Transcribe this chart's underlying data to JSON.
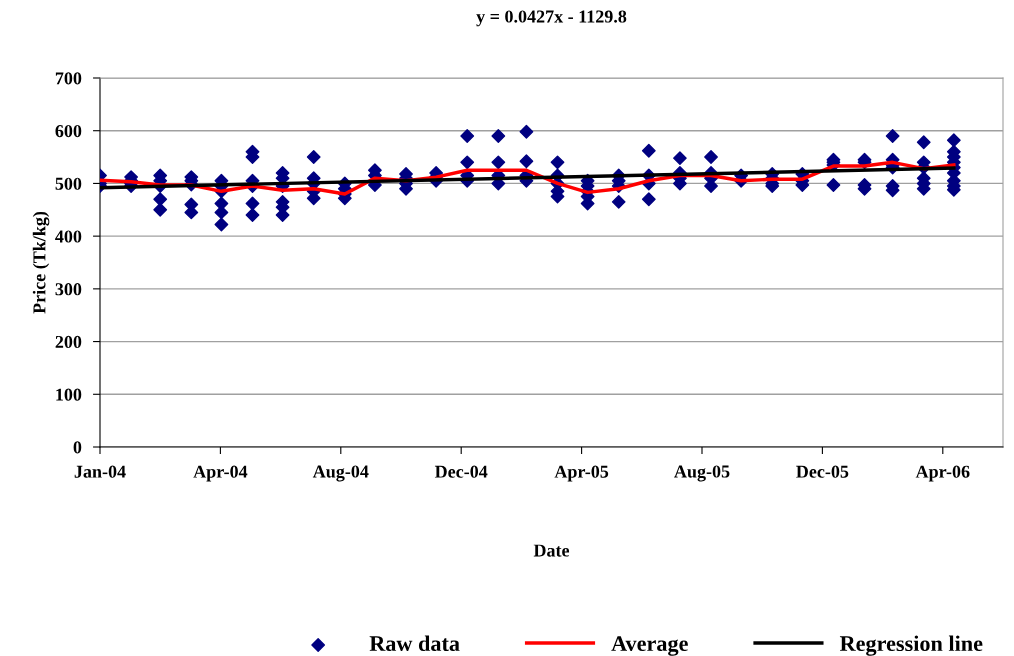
{
  "chart_data": {
    "type": "scatter",
    "title": "y = 0.0427x - 1129.8",
    "xlabel": "Date",
    "ylabel": "Price (Tk/kg)",
    "xlim": [
      "2004-01-01",
      "2006-06-19"
    ],
    "ylim": [
      0,
      700
    ],
    "yticks": [
      0,
      100,
      200,
      300,
      400,
      500,
      600,
      700
    ],
    "xticks": [
      {
        "value": "2004-01-01",
        "label": "Jan-04"
      },
      {
        "value": "2004-04-30",
        "label": "Apr-04"
      },
      {
        "value": "2004-08-28",
        "label": "Aug-04"
      },
      {
        "value": "2004-12-26",
        "label": "Dec-04"
      },
      {
        "value": "2005-04-25",
        "label": "Apr-05"
      },
      {
        "value": "2005-08-23",
        "label": "Aug-05"
      },
      {
        "value": "2005-12-21",
        "label": "Dec-05"
      },
      {
        "value": "2006-04-20",
        "label": "Apr-06"
      }
    ],
    "grid": "y",
    "legend": "bottom",
    "series": [
      {
        "name": "Raw data",
        "marker": "diamond",
        "color": "#000080",
        "x": [
          "2004-01",
          "2004-01",
          "2004-01",
          "2004-02",
          "2004-02",
          "2004-02",
          "2004-02",
          "2004-03",
          "2004-03",
          "2004-03",
          "2004-03",
          "2004-03",
          "2004-04",
          "2004-04",
          "2004-04",
          "2004-04",
          "2004-04",
          "2004-05",
          "2004-05",
          "2004-05",
          "2004-05",
          "2004-05",
          "2004-05",
          "2004-06",
          "2004-06",
          "2004-06",
          "2004-06",
          "2004-06",
          "2004-06",
          "2004-07",
          "2004-07",
          "2004-07",
          "2004-07",
          "2004-07",
          "2004-07",
          "2004-08",
          "2004-08",
          "2004-08",
          "2004-08",
          "2004-08",
          "2004-09",
          "2004-09",
          "2004-09",
          "2004-09",
          "2004-10",
          "2004-10",
          "2004-10",
          "2004-11",
          "2004-11",
          "2004-11",
          "2004-11",
          "2004-12",
          "2004-12",
          "2004-12",
          "2005-01",
          "2005-01",
          "2005-01",
          "2005-01",
          "2005-02",
          "2005-02",
          "2005-02",
          "2005-02",
          "2005-03",
          "2005-03",
          "2005-03",
          "2005-03",
          "2005-04",
          "2005-04",
          "2005-04",
          "2005-04",
          "2005-04",
          "2005-05",
          "2005-05",
          "2005-05",
          "2005-05",
          "2005-05",
          "2005-06",
          "2005-06",
          "2005-06",
          "2005-06",
          "2005-07",
          "2005-07",
          "2005-07",
          "2005-07",
          "2005-08",
          "2005-08",
          "2005-08",
          "2005-08",
          "2005-09",
          "2005-09",
          "2005-09",
          "2005-09",
          "2005-10",
          "2005-10",
          "2005-11",
          "2005-11",
          "2005-11",
          "2005-11",
          "2005-12",
          "2005-12",
          "2005-12",
          "2006-01",
          "2006-01",
          "2006-01",
          "2006-01",
          "2006-02",
          "2006-02",
          "2006-02",
          "2006-02",
          "2006-03",
          "2006-03",
          "2006-03",
          "2006-03",
          "2006-03",
          "2006-03",
          "2006-04",
          "2006-04",
          "2006-04",
          "2006-04",
          "2006-04",
          "2006-04",
          "2006-05",
          "2006-05",
          "2006-05",
          "2006-05",
          "2006-05",
          "2006-05",
          "2006-05",
          "2006-05",
          "2006-05"
        ],
        "values": [
          515,
          500,
          495,
          512,
          505,
          500,
          495,
          515,
          505,
          495,
          470,
          450,
          512,
          505,
          498,
          460,
          445,
          505,
          495,
          485,
          462,
          445,
          422,
          560,
          550,
          505,
          495,
          462,
          440,
          520,
          510,
          495,
          465,
          455,
          440,
          550,
          510,
          500,
          485,
          472,
          500,
          490,
          480,
          472,
          525,
          515,
          497,
          518,
          510,
          500,
          490,
          520,
          512,
          505,
          590,
          540,
          515,
          505,
          590,
          540,
          515,
          500,
          598,
          542,
          515,
          505,
          540,
          515,
          500,
          485,
          475,
          505,
          495,
          485,
          475,
          462,
          515,
          505,
          495,
          465,
          562,
          515,
          500,
          470,
          548,
          520,
          510,
          500,
          550,
          520,
          510,
          495,
          515,
          505,
          518,
          510,
          500,
          495,
          518,
          505,
          497,
          545,
          540,
          535,
          497,
          545,
          540,
          497,
          490,
          590,
          545,
          535,
          530,
          495,
          487,
          578,
          540,
          530,
          510,
          500,
          490,
          582,
          560,
          550,
          540,
          530,
          520,
          505,
          495,
          488
        ]
      },
      {
        "name": "Average",
        "type": "line",
        "color": "#ff0000",
        "x": [
          "2004-01",
          "2004-02",
          "2004-03",
          "2004-04",
          "2004-05",
          "2004-06",
          "2004-07",
          "2004-08",
          "2004-09",
          "2004-10",
          "2004-11",
          "2004-12",
          "2005-01",
          "2005-02",
          "2005-03",
          "2005-04",
          "2005-05",
          "2005-06",
          "2005-07",
          "2005-08",
          "2005-09",
          "2005-10",
          "2005-11",
          "2005-12",
          "2006-01",
          "2006-02",
          "2006-03",
          "2006-04",
          "2006-05"
        ],
        "values": [
          506,
          503,
          497,
          497,
          485,
          495,
          487,
          490,
          480,
          510,
          505,
          512,
          525,
          525,
          525,
          500,
          483,
          490,
          505,
          515,
          515,
          505,
          508,
          508,
          533,
          533,
          540,
          528,
          535
        ]
      },
      {
        "name": "Regression line",
        "type": "line",
        "color": "#000000",
        "x": [
          "2004-01-01",
          "2006-05-01"
        ],
        "values": [
          492,
          529
        ]
      }
    ]
  }
}
